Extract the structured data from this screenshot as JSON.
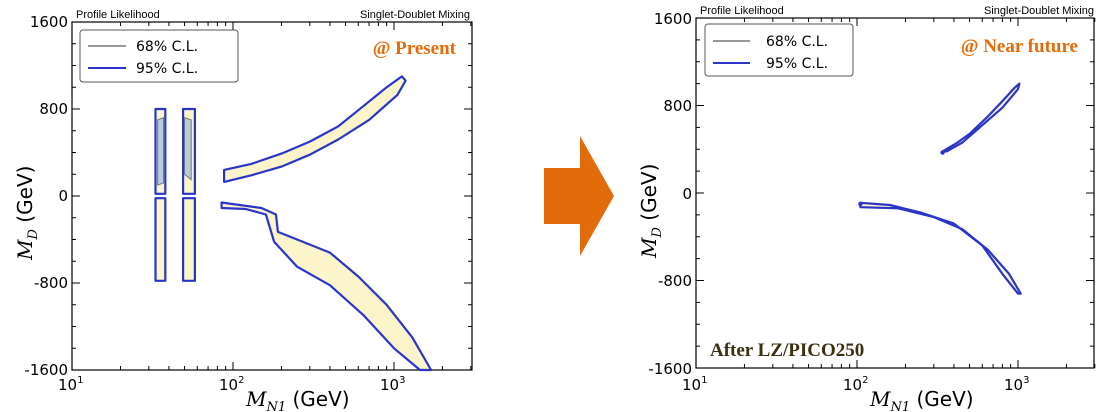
{
  "arrow_color": "#e36c0a",
  "panels": [
    {
      "header_left": "Profile Likelihood",
      "header_right": "Singlet-Doublet Mixing",
      "scenario": "@ Present",
      "scenario_color": "#e36c0a",
      "note": "",
      "legend": {
        "c68": "68% C.L.",
        "c95": "95% C.L."
      },
      "x_ticks": [
        {
          "v": 10,
          "b": "10",
          "e": "1"
        },
        {
          "v": 100,
          "b": "10",
          "e": "2"
        },
        {
          "v": 1000,
          "b": "10",
          "e": "3"
        }
      ],
      "y_ticks": [
        "-1600",
        "-800",
        "0",
        "800",
        "1600"
      ],
      "xlabel": {
        "main": "M",
        "sub": "N1",
        "unit": " (GeV)"
      },
      "ylabel": {
        "main": "M",
        "sub": "D",
        "unit": " (GeV)"
      }
    },
    {
      "header_left": "Profile Likelihood",
      "header_right": "Singlet-Doublet Mixing",
      "scenario": "@ Near future",
      "scenario_color": "#e36c0a",
      "note": "After LZ/PICO250",
      "legend": {
        "c68": "68% C.L.",
        "c95": "95% C.L."
      },
      "x_ticks": [
        {
          "v": 10,
          "b": "10",
          "e": "1"
        },
        {
          "v": 100,
          "b": "10",
          "e": "2"
        },
        {
          "v": 1000,
          "b": "10",
          "e": "3"
        }
      ],
      "y_ticks": [
        "-1600",
        "-800",
        "0",
        "800",
        "1600"
      ],
      "xlabel": {
        "main": "M",
        "sub": "N1",
        "unit": " (GeV)"
      },
      "ylabel": {
        "main": "M",
        "sub": "D",
        "unit": " (GeV)"
      }
    }
  ],
  "chart_data": [
    {
      "type": "area",
      "title": "@ Present",
      "x_scale": "log",
      "xlim": [
        10,
        3300
      ],
      "ylim": [
        -1600,
        1600
      ],
      "xlabel": "M_N1 (GeV)",
      "ylabel": "M_D (GeV)",
      "legend_position": "top-left",
      "grid": false,
      "colors": {
        "c95_line": "#2a35c8",
        "c68_line": "#777777",
        "c95_fill": "#fbf5c9",
        "c68_fill": "#b8cdd8"
      },
      "regions_95": [
        {
          "label": "low mass, positive M_D (left)",
          "points": [
            [
              33,
              800
            ],
            [
              38,
              800
            ],
            [
              38,
              20
            ],
            [
              33,
              20
            ]
          ]
        },
        {
          "label": "low mass, positive M_D (right)",
          "points": [
            [
              49,
              800
            ],
            [
              58,
              800
            ],
            [
              58,
              20
            ],
            [
              49,
              20
            ]
          ]
        },
        {
          "label": "low mass, negative M_D (left)",
          "points": [
            [
              33,
              -20
            ],
            [
              38,
              -20
            ],
            [
              38,
              -780
            ],
            [
              33,
              -780
            ]
          ]
        },
        {
          "label": "low mass, negative M_D (right)",
          "points": [
            [
              49,
              -20
            ],
            [
              58,
              -20
            ],
            [
              58,
              -780
            ],
            [
              49,
              -780
            ]
          ]
        },
        {
          "label": "upper branch",
          "points": [
            [
              88,
              240
            ],
            [
              130,
              295
            ],
            [
              200,
              390
            ],
            [
              300,
              500
            ],
            [
              450,
              640
            ],
            [
              650,
              830
            ],
            [
              900,
              1000
            ],
            [
              1120,
              1100
            ],
            [
              1180,
              1060
            ],
            [
              1050,
              930
            ],
            [
              700,
              700
            ],
            [
              450,
              520
            ],
            [
              300,
              380
            ],
            [
              200,
              270
            ],
            [
              130,
              190
            ],
            [
              88,
              130
            ]
          ]
        },
        {
          "label": "lower branch",
          "points": [
            [
              85,
              -60
            ],
            [
              150,
              -110
            ],
            [
              185,
              -170
            ],
            [
              190,
              -330
            ],
            [
              250,
              -400
            ],
            [
              400,
              -520
            ],
            [
              600,
              -740
            ],
            [
              900,
              -1000
            ],
            [
              1300,
              -1300
            ],
            [
              1700,
              -1600
            ],
            [
              1450,
              -1600
            ],
            [
              1000,
              -1400
            ],
            [
              650,
              -1100
            ],
            [
              400,
              -820
            ],
            [
              250,
              -650
            ],
            [
              180,
              -420
            ],
            [
              160,
              -170
            ],
            [
              120,
              -120
            ],
            [
              85,
              -110
            ]
          ]
        }
      ],
      "regions_68": [
        {
          "label": "low mass, positive M_D",
          "points": [
            [
              34,
              700
            ],
            [
              37,
              720
            ],
            [
              37,
              120
            ],
            [
              34,
              100
            ]
          ]
        },
        {
          "label": "low mass, positive M_D (inner)",
          "points": [
            [
              50,
              720
            ],
            [
              55,
              700
            ],
            [
              55,
              150
            ],
            [
              50,
              200
            ]
          ]
        }
      ]
    },
    {
      "type": "area",
      "title": "@ Near future",
      "annotation": "After LZ/PICO250",
      "x_scale": "log",
      "xlim": [
        10,
        3300
      ],
      "ylim": [
        -1600,
        1600
      ],
      "xlabel": "M_N1 (GeV)",
      "ylabel": "M_D (GeV)",
      "legend_position": "top-left",
      "grid": false,
      "colors": {
        "c95_line": "#2a35c8",
        "c68_line": "#777777",
        "c95_fill": "#fbf5c9",
        "c68_fill": "#b8cdd8"
      },
      "regions_95": [
        {
          "label": "upper branch",
          "points": [
            [
              340,
              380
            ],
            [
              420,
              460
            ],
            [
              500,
              540
            ],
            [
              650,
              700
            ],
            [
              800,
              840
            ],
            [
              950,
              960
            ],
            [
              1020,
              1000
            ],
            [
              1000,
              950
            ],
            [
              800,
              780
            ],
            [
              600,
              620
            ],
            [
              450,
              460
            ],
            [
              360,
              380
            ]
          ]
        },
        {
          "label": "lower branch",
          "points": [
            [
              105,
              -90
            ],
            [
              160,
              -110
            ],
            [
              250,
              -180
            ],
            [
              400,
              -280
            ],
            [
              600,
              -480
            ],
            [
              800,
              -740
            ],
            [
              1000,
              -920
            ],
            [
              1040,
              -920
            ],
            [
              880,
              -740
            ],
            [
              650,
              -520
            ],
            [
              450,
              -330
            ],
            [
              300,
              -220
            ],
            [
              180,
              -140
            ],
            [
              105,
              -130
            ]
          ]
        }
      ],
      "regions_68": [],
      "points_95": [
        [
          340,
          370
        ],
        [
          105,
          -100
        ]
      ]
    }
  ]
}
